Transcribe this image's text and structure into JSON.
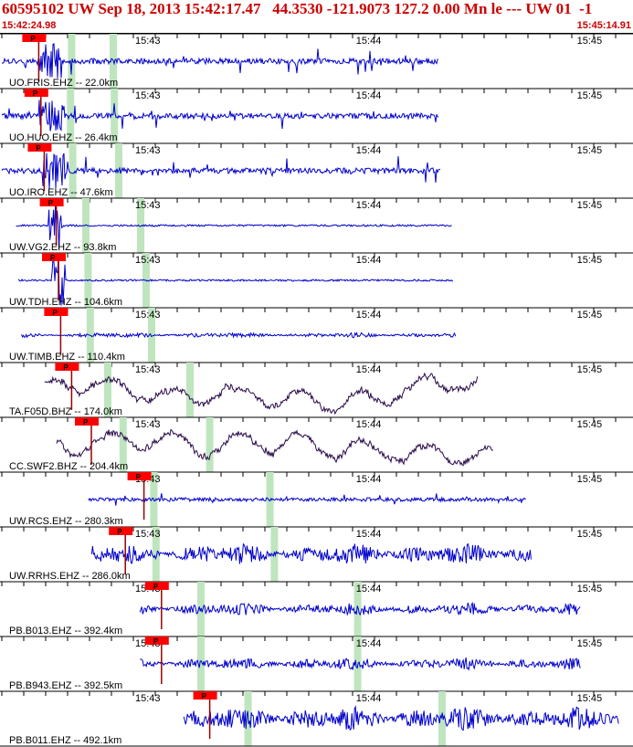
{
  "header": {
    "title": "60595102 UW Sep 18, 2013 15:42:17.47   44.3530 -121.9073 127.2 0.00 Mn le --- UW 01  -1",
    "start_time": "15:42:24.98",
    "end_time": "15:45:14.91"
  },
  "colors": {
    "text_red": "#cc0000",
    "trace_blue": "#0000cc",
    "trace_purple": "#2a0a4a",
    "pick_red": "#ff0000",
    "window_green": "#bfe5bf",
    "grid": "#000000"
  },
  "chart_data": {
    "type": "line",
    "title": "",
    "time_ticks": [
      "15:43",
      "15:44",
      "15:45"
    ],
    "pick_label": "P",
    "grid": "tick marks every 10 s, labeled each minute",
    "series": [
      {
        "name": "UO.FRIS.EHZ -- 22.0km",
        "color": "blue",
        "onset_s": 0,
        "p_pick_s": 32,
        "windows_s": [
          37,
          75
        ],
        "end_s": 400,
        "style": "bursty",
        "amp": 0.85
      },
      {
        "name": "UO.HUO.EHZ -- 26.4km",
        "color": "blue",
        "onset_s": 0,
        "p_pick_s": 34,
        "windows_s": [
          36,
          76
        ],
        "end_s": 400,
        "style": "bursty",
        "amp": 0.8
      },
      {
        "name": "UO.IRO.EHZ -- 47.6km",
        "color": "blue",
        "onset_s": 0,
        "p_pick_s": 37,
        "windows_s": [
          38,
          80
        ],
        "end_s": 402,
        "style": "bursty",
        "amp": 0.9
      },
      {
        "name": "UW.VG2.EHZ -- 93.8km",
        "color": "blue",
        "onset_s": 13,
        "p_pick_s": 48,
        "windows_s": [
          50,
          100
        ],
        "end_s": 413,
        "style": "flat",
        "amp": 0.05
      },
      {
        "name": "UW.TDH.EHZ -- 104.6km",
        "color": "blue",
        "onset_s": 15,
        "p_pick_s": 50,
        "windows_s": [
          52,
          105
        ],
        "end_s": 414,
        "style": "flat",
        "amp": 0.1
      },
      {
        "name": "UW.TIMB.EHZ -- 110.4km",
        "color": "blue",
        "onset_s": 18,
        "p_pick_s": 52,
        "windows_s": [
          54,
          110
        ],
        "end_s": 416,
        "style": "noisy",
        "amp": 0.2
      },
      {
        "name": "TA.F05D.BHZ -- 174.0km",
        "color": "purple",
        "onset_s": 39,
        "p_pick_s": 62,
        "windows_s": [
          70,
          145
        ],
        "end_s": 436,
        "style": "wander",
        "amp": 0.85
      },
      {
        "name": "CC.SWF2.BHZ -- 204.4km",
        "color": "purple",
        "onset_s": 50,
        "p_pick_s": 80,
        "windows_s": [
          84,
          163
        ],
        "end_s": 450,
        "style": "wander",
        "amp": 0.8
      },
      {
        "name": "UW.RCS.EHZ -- 280.3km",
        "color": "blue",
        "onset_s": 79,
        "p_pick_s": 128,
        "windows_s": [
          112,
          218
        ],
        "end_s": 480,
        "style": "quiet",
        "amp": 0.35
      },
      {
        "name": "UW.RRHS.EHZ -- 286.0km",
        "color": "blue",
        "onset_s": 82,
        "p_pick_s": 111,
        "windows_s": [
          114,
          222
        ],
        "end_s": 485,
        "style": "noisy",
        "amp": 0.85
      },
      {
        "name": "PB.B013.EHZ -- 392.4km",
        "color": "blue",
        "onset_s": 126,
        "p_pick_s": 144,
        "windows_s": [
          155,
          298
        ],
        "end_s": 530,
        "style": "noisy",
        "amp": 0.5
      },
      {
        "name": "PB.B943.EHZ -- 392.5km",
        "color": "blue",
        "onset_s": 126,
        "p_pick_s": 144,
        "windows_s": [
          155,
          298
        ],
        "end_s": 530,
        "style": "noisy",
        "amp": 0.5
      },
      {
        "name": "PB.B011.EHZ -- 492.1km",
        "color": "blue",
        "onset_s": 166,
        "p_pick_s": 188,
        "windows_s": [
          198,
          375
        ],
        "end_s": 565,
        "style": "noisy",
        "amp": 1.0
      }
    ]
  }
}
